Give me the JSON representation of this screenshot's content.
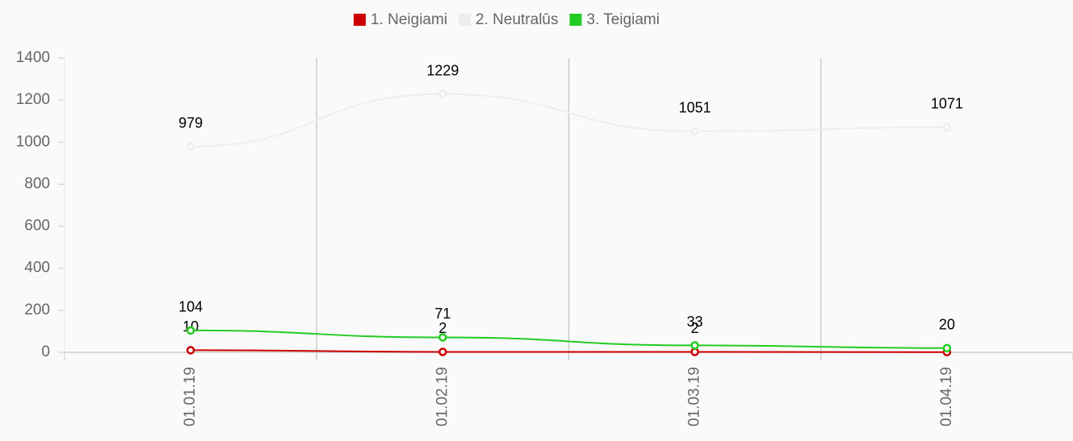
{
  "chart_data": {
    "type": "line",
    "categories": [
      "01.01.19",
      "01.02.19",
      "01.03.19",
      "01.04.19"
    ],
    "series": [
      {
        "name": "1. Neigiami",
        "color": "#cc0000",
        "values": [
          10,
          2,
          2,
          1
        ],
        "value_labels": [
          "10",
          "2",
          "2",
          null
        ]
      },
      {
        "name": "2. Neutralūs",
        "color": "#eeeeee",
        "values": [
          979,
          1229,
          1051,
          1071
        ]
      },
      {
        "name": "3. Teigiami",
        "color": "#22cc22",
        "values": [
          104,
          71,
          33,
          20
        ]
      }
    ],
    "ylim": [
      0,
      1400
    ],
    "yticks": [
      0,
      200,
      400,
      600,
      800,
      1000,
      1200,
      1400
    ],
    "legend": "top"
  }
}
